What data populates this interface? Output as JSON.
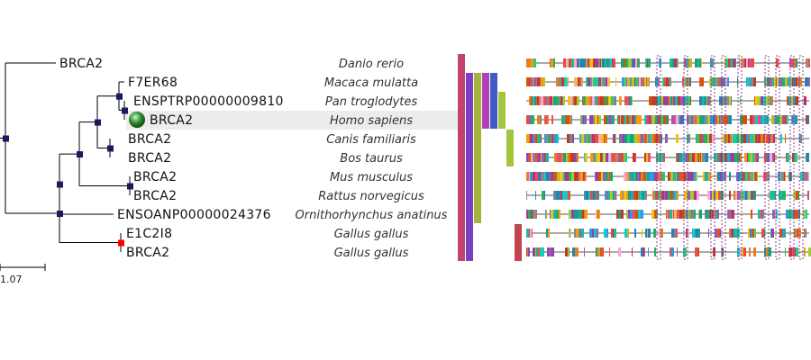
{
  "rows": [
    {
      "gene": "BRCA2",
      "species": "Danio rerio"
    },
    {
      "gene": "F7ER68",
      "species": "Macaca mulatta"
    },
    {
      "gene": "ENSPTRP00000009810",
      "species": "Pan troglodytes"
    },
    {
      "gene": "BRCA2",
      "species": "Homo sapiens",
      "highlighted": true
    },
    {
      "gene": "BRCA2",
      "species": "Canis familiaris"
    },
    {
      "gene": "BRCA2",
      "species": "Bos taurus"
    },
    {
      "gene": "BRCA2",
      "species": "Mus musculus"
    },
    {
      "gene": "BRCA2",
      "species": "Rattus norvegicus"
    },
    {
      "gene": "ENSOANP00000024376",
      "species": "Ornithorhynchus anatinus"
    },
    {
      "gene": "E1C2I8",
      "species": "Gallus gallus"
    },
    {
      "gene": "BRCA2",
      "species": "Gallus gallus"
    }
  ],
  "scale_bar": {
    "label": "1.07"
  },
  "colors": {
    "branch": "#000000",
    "speciation_node": "#1a1a5e",
    "duplication_node": "#ff0000",
    "query_marker": "#2e8b2e",
    "highlight_row": "#ececec",
    "alignment_gap": "#555555",
    "conserved_column": "#8a3f8a"
  },
  "clade_bars": [
    {
      "from_row": 0,
      "to_row": 10,
      "color": "#c2446e"
    },
    {
      "from_row": 1,
      "to_row": 10,
      "color": "#7b3fc4"
    },
    {
      "from_row": 1,
      "to_row": 8,
      "color": "#a6b43c"
    },
    {
      "from_row": 1,
      "to_row": 3,
      "color": "#b040b8"
    },
    {
      "from_row": 1,
      "to_row": 3,
      "color": "#3f5bc4"
    },
    {
      "from_row": 2,
      "to_row": 3,
      "color": "#a6c43c"
    },
    {
      "from_row": 4,
      "to_row": 5,
      "color": "#a6c43c"
    },
    {
      "from_row": 9,
      "to_row": 10,
      "color": "#c2444e"
    }
  ]
}
